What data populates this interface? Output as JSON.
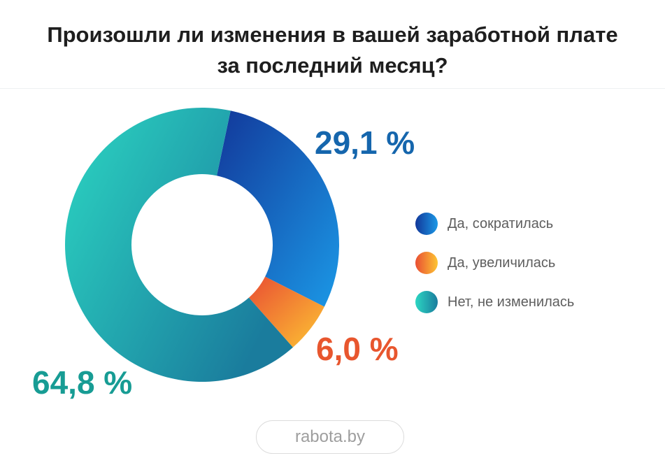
{
  "title": {
    "line1": "Произошли ли изменения в вашей заработной плате",
    "line2": "за последний месяц?"
  },
  "chart_data": {
    "type": "pie",
    "donut": true,
    "categories": [
      "Да, сократилась",
      "Да, увеличилась",
      "Нет, не изменилась"
    ],
    "values": [
      29.1,
      6.0,
      64.8
    ],
    "value_labels": [
      "29,1 %",
      "6,0 %",
      "64,8 %"
    ],
    "colors": [
      {
        "from": "#12389a",
        "to": "#1b98e6",
        "label": "#1566ad"
      },
      {
        "from": "#e94e33",
        "to": "#fdc533",
        "label": "#e8562e"
      },
      {
        "from": "#2cd6c2",
        "to": "#1a7c9d",
        "label": "#179c94"
      }
    ],
    "start_angle_deg": 12,
    "legend_position": "right"
  },
  "legend": {
    "items": [
      {
        "label": "Да, сократилась"
      },
      {
        "label": "Да, увеличилась"
      },
      {
        "label": "Нет, не изменилась"
      }
    ]
  },
  "source": {
    "label": "rabota.by"
  }
}
